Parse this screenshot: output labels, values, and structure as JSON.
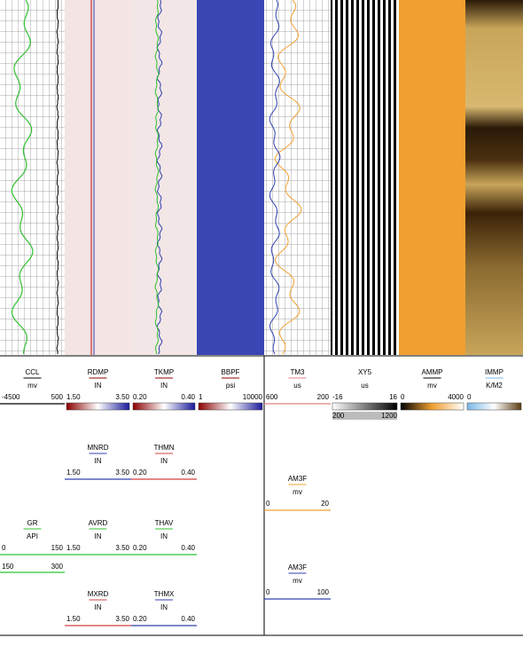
{
  "legend": [
    {
      "name": "CCL",
      "unit": "mv",
      "min": "-4500",
      "max": "500",
      "color": "#000000"
    },
    {
      "name": "RDMP",
      "unit": "IN",
      "min": "1.50",
      "max": "3.50",
      "colors": [
        "#8b0000",
        "#ffffff",
        "#1a1a9a"
      ]
    },
    {
      "name": "TKMP",
      "unit": "IN",
      "min": "0.20",
      "max": "0.40",
      "colors": [
        "#8b0000",
        "#ffffff",
        "#1a1a9a"
      ]
    },
    {
      "name": "BBPF",
      "unit": "psi",
      "min": "1",
      "max": "10000",
      "colors": [
        "#8b0000",
        "#ffffff",
        "#1a1a9a"
      ]
    },
    {
      "name": "TM3",
      "unit": "us",
      "min": "600",
      "max": "200",
      "color": "#e08080"
    },
    {
      "name": "XY5",
      "unit": "us",
      "min": "-16",
      "max": "16",
      "min2": "200",
      "max2": "1200",
      "colors": [
        "#ffffff",
        "#000000"
      ]
    },
    {
      "name": "AMMP",
      "unit": "mv",
      "min": "0",
      "max": "4000",
      "colors": [
        "#000000",
        "#f0a030",
        "#ffffff"
      ]
    },
    {
      "name": "IMMP",
      "unit": "K/M2",
      "min": "0",
      "colors": [
        "#7ab8e8",
        "#ffffff",
        "#5a3a10"
      ]
    },
    {
      "name": "MNRD",
      "unit": "IN",
      "min": "1.50",
      "max": "3.50",
      "color": "#3040b0"
    },
    {
      "name": "THMN",
      "unit": "IN",
      "min": "0.20",
      "max": "0.40",
      "color": "#d04040"
    },
    {
      "name": "AM3F",
      "unit": "mv",
      "min": "0",
      "max": "20",
      "color": "#f0a030"
    },
    {
      "name": "GR",
      "unit": "API",
      "min": "0",
      "max": "150",
      "min2": "150",
      "max2": "300",
      "color": "#30c030"
    },
    {
      "name": "AVRD",
      "unit": "IN",
      "min": "1.50",
      "max": "3.50",
      "color": "#30c030"
    },
    {
      "name": "THAV",
      "unit": "IN",
      "min": "0.20",
      "max": "0.40",
      "color": "#30c030"
    },
    {
      "name": "AM3F",
      "unit": "mv",
      "min": "0",
      "max": "100",
      "color": "#3040b0"
    },
    {
      "name": "MXRD",
      "unit": "IN",
      "min": "1.50",
      "max": "3.50",
      "color": "#d04040"
    },
    {
      "name": "THMX",
      "unit": "IN",
      "min": "0.20",
      "max": "0.40",
      "color": "#3040b0"
    }
  ]
}
